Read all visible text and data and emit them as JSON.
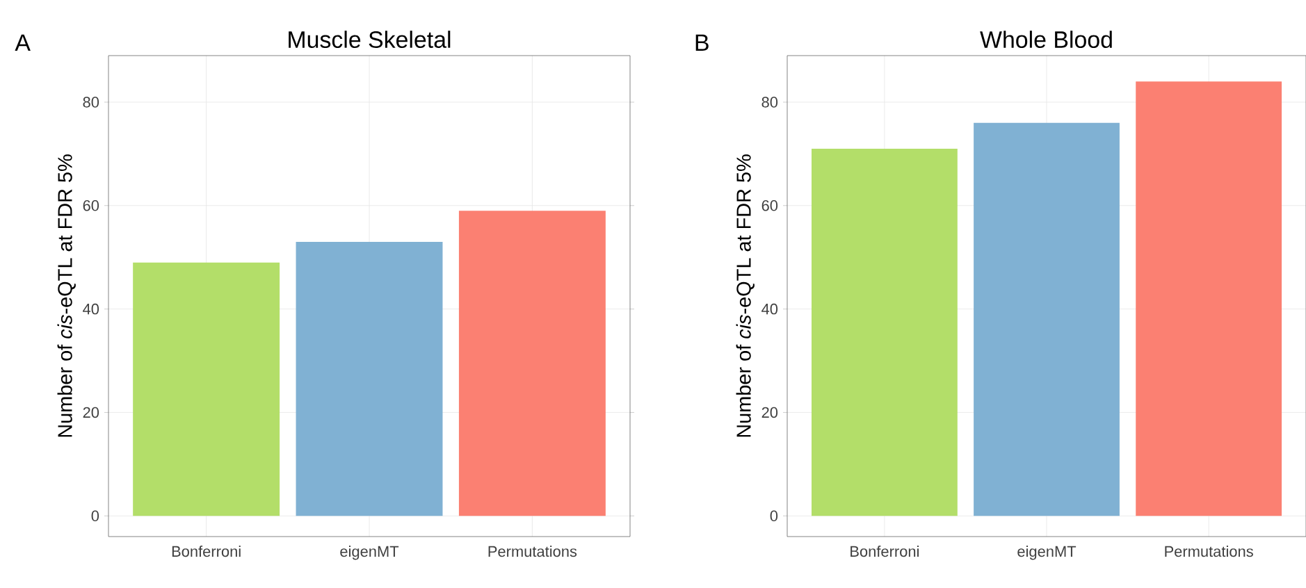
{
  "chart_data": [
    {
      "type": "bar",
      "title": "Muscle Skeletal",
      "ylabel": "Number of *cis*-eQTL at FDR 5%",
      "annotations": [
        "A"
      ],
      "categories": [
        "Bonferroni",
        "eigenMT",
        "Permutations"
      ],
      "values": [
        49,
        53,
        59
      ],
      "colors": [
        "#b3de69",
        "#80b1d3",
        "#fb8072"
      ],
      "ylim": [
        -4,
        89
      ],
      "yticks": [
        0,
        20,
        40,
        60,
        80
      ],
      "grid": true
    },
    {
      "type": "bar",
      "title": "Whole Blood",
      "ylabel": "Number of *cis*-eQTL at FDR 5%",
      "annotations": [
        "B"
      ],
      "categories": [
        "Bonferroni",
        "eigenMT",
        "Permutations"
      ],
      "values": [
        71,
        76,
        84
      ],
      "colors": [
        "#b3de69",
        "#80b1d3",
        "#fb8072"
      ],
      "ylim": [
        -4,
        89
      ],
      "yticks": [
        0,
        20,
        40,
        60,
        80
      ],
      "grid": true
    }
  ]
}
